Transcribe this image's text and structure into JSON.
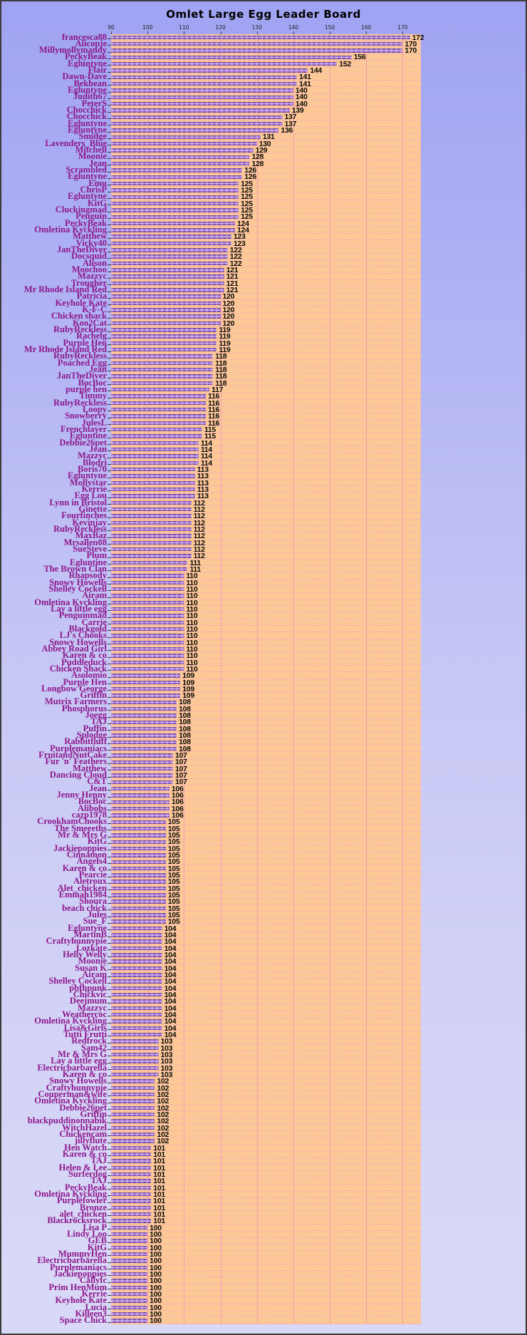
{
  "title": "Omlet Large Egg Leader Board",
  "chart_data": {
    "type": "bar",
    "orientation": "horizontal",
    "title": "Omlet Large Egg Leader Board",
    "xlabel": "",
    "ylabel": "",
    "xlim": [
      90,
      175
    ],
    "x_ticks": [
      90,
      100,
      110,
      120,
      130,
      140,
      150,
      160,
      170
    ],
    "grid": true,
    "legend": "none",
    "colors": {
      "background_top": "#a0a3f2",
      "background_bottom": "#d9d9f7",
      "plot_background": "#fcc996",
      "gridline": "#f19cb0",
      "bar_dark": "#4d2b7d",
      "bar_mid": "#a379d8",
      "bar_light": "#dab6f2",
      "category_label": "#8d178d",
      "value_label": "#0a0a0a"
    },
    "categories": [
      "francesca88",
      "Alicopje",
      "Millymollymandy",
      "PeckyBeak",
      "Egluntyne",
      "Flair",
      "Dawn-Dave",
      "Bekbean",
      "Egluntyne",
      "Judith67",
      "PeterS",
      "Chocchick",
      "Chocchick",
      "Egluntyne",
      "Egluntyne",
      "Smidge",
      "Lavenders_Blue",
      "Mitchell",
      "Moonie",
      "Jean",
      "Scrambled",
      "Egluntyne",
      "Emu",
      "ChrisP",
      "Egluntyne",
      "KitG",
      "Cluckingmad",
      "Penguin",
      "PeckyBeak",
      "Omletina Kyckling",
      "Matthew",
      "Vicky40",
      "JanTheDiver",
      "Docsquid",
      "Alison",
      "Moochoo",
      "Mazzyc",
      "Trougher",
      "Mr Rhode Island Red",
      "Patricia",
      "Keyhole Kate",
      "K-F-C",
      "Chicken shack",
      "Koo2Cat",
      "RubyReckless",
      "Rachelg",
      "Purple Hen",
      "Mr Rhode Island Red",
      "RubyReckless",
      "Poached Egg",
      "Jean",
      "JanTheDiver",
      "BocBoc",
      "purple hen",
      "Timmy",
      "RubyReckless",
      "Loopy",
      "Snowberry",
      "JulesL",
      "Frenchlayer",
      "Egluntine",
      "Debbie26pet",
      "Jean",
      "Mazzyc",
      "Blodri",
      "Boris70",
      "Egluntyne",
      "Mollystar",
      "Kerrie",
      "Egg Lou",
      "Lynn in Bristol",
      "Ginette",
      "Fourfinches",
      "Kevinjay",
      "RubyReckless",
      "MaxBaz",
      "Mrsallen08",
      "SueSteve",
      "Plum",
      "Egluntine",
      "The Brown Clan",
      "Rhapsody",
      "Snowy Howells",
      "Shelley Cockell",
      "Airam",
      "Omletina Kyckling",
      "Lay a little egg",
      "Penguinmad",
      "Carrie",
      "Blackgold",
      "LJ's Chooks",
      "Snowy Howells",
      "Abbey Road Girl",
      "Karen & co",
      "Puddleduck",
      "Chicken Shack",
      "Asolomio",
      "Purple Hen",
      "Longbow George",
      "Griffin",
      "Mutrix Farmers",
      "Phosphorus",
      "Joegg",
      "TAJ",
      "Puffin",
      "Splodge",
      "Rabbitfluff",
      "Purplemaniacs",
      "FruitandNutCake",
      "Fur 'n' Feathers",
      "Matthew",
      "Dancing Cloud",
      "C&T",
      "Jean",
      "Jenny Henny",
      "BocBoc",
      "Alibobs",
      "cazp1978",
      "CrookhamChooks",
      "The Smeeeths",
      "Mr & Mrs G",
      "KitG",
      "Jackiepoppies",
      "Cinnamon",
      "Angels4",
      "Karen & co",
      "Pearcie",
      "Aletroux",
      "Alet_chicken",
      "Emmah1984",
      "Shoura",
      "beach chick",
      "Jules",
      "Sue_F",
      "Egluntyne",
      "MartinB",
      "Craftyhunnypie",
      "Lozkate",
      "Helly Welly",
      "Moonie",
      "Susan K",
      "Airam",
      "Shelley Cockell",
      "pbfhpunk",
      "Chickvic",
      "Deejmum",
      "Mazzyc",
      "Weathercoc",
      "Omletina Kyckling",
      "Lisa&Girls",
      "Tutti Frutti",
      "Redfrock",
      "Sam42",
      "Mr & Mrs G",
      "Lay a little egg",
      "Electricbarbarella",
      "Karen & co",
      "Snowy Howells",
      "Craftyhunnypie",
      "Couperman&wife",
      "Omletina Kyckling",
      "Debbie26pet",
      "Griffin",
      "blackpuddinonnabik",
      "WitchHazel",
      "Chickencam",
      "jillyflute",
      "Hen Watch",
      "Karen & co",
      "TAJ",
      "Helen & Lee",
      "Surferdog",
      "TAJ",
      "PeckyBeak",
      "Omletina Kyckling",
      "Purplefowler",
      "Bronze",
      "alet_chicken",
      "Blackrocksrock",
      "Lisa P",
      "Lindy Loo",
      "GEB",
      "KitG",
      "MummyHen",
      "Electricbarbarella",
      "Purplemaniacs",
      "Jackiepoppies",
      "Callyfc",
      "Prim HenMum",
      "Kerrie",
      "Keyhole Kate",
      "Lucia",
      "Killeen3",
      "Space Chick"
    ],
    "values": [
      172,
      170,
      170,
      156,
      152,
      144,
      141,
      141,
      140,
      140,
      140,
      139,
      137,
      137,
      136,
      131,
      130,
      129,
      128,
      128,
      126,
      126,
      125,
      125,
      125,
      125,
      125,
      125,
      124,
      124,
      123,
      123,
      122,
      122,
      122,
      121,
      121,
      121,
      121,
      120,
      120,
      120,
      120,
      120,
      119,
      119,
      119,
      119,
      118,
      118,
      118,
      118,
      118,
      117,
      116,
      116,
      116,
      116,
      116,
      115,
      115,
      114,
      114,
      114,
      114,
      113,
      113,
      113,
      113,
      113,
      112,
      112,
      112,
      112,
      112,
      112,
      112,
      112,
      112,
      111,
      111,
      110,
      110,
      110,
      110,
      110,
      110,
      110,
      110,
      110,
      110,
      110,
      110,
      110,
      110,
      110,
      109,
      109,
      109,
      109,
      108,
      108,
      108,
      108,
      108,
      108,
      108,
      108,
      107,
      107,
      107,
      107,
      107,
      106,
      106,
      106,
      106,
      106,
      105,
      105,
      105,
      105,
      105,
      105,
      105,
      105,
      105,
      105,
      105,
      105,
      105,
      105,
      105,
      105,
      104,
      104,
      104,
      104,
      104,
      104,
      104,
      104,
      104,
      104,
      104,
      104,
      104,
      104,
      104,
      104,
      104,
      103,
      103,
      103,
      103,
      103,
      103,
      102,
      102,
      102,
      102,
      102,
      102,
      102,
      102,
      102,
      102,
      101,
      101,
      101,
      101,
      101,
      101,
      101,
      101,
      101,
      101,
      101,
      101,
      100,
      100,
      100,
      100,
      100,
      100,
      100,
      100,
      100,
      100,
      100,
      100,
      100,
      100,
      100
    ]
  }
}
